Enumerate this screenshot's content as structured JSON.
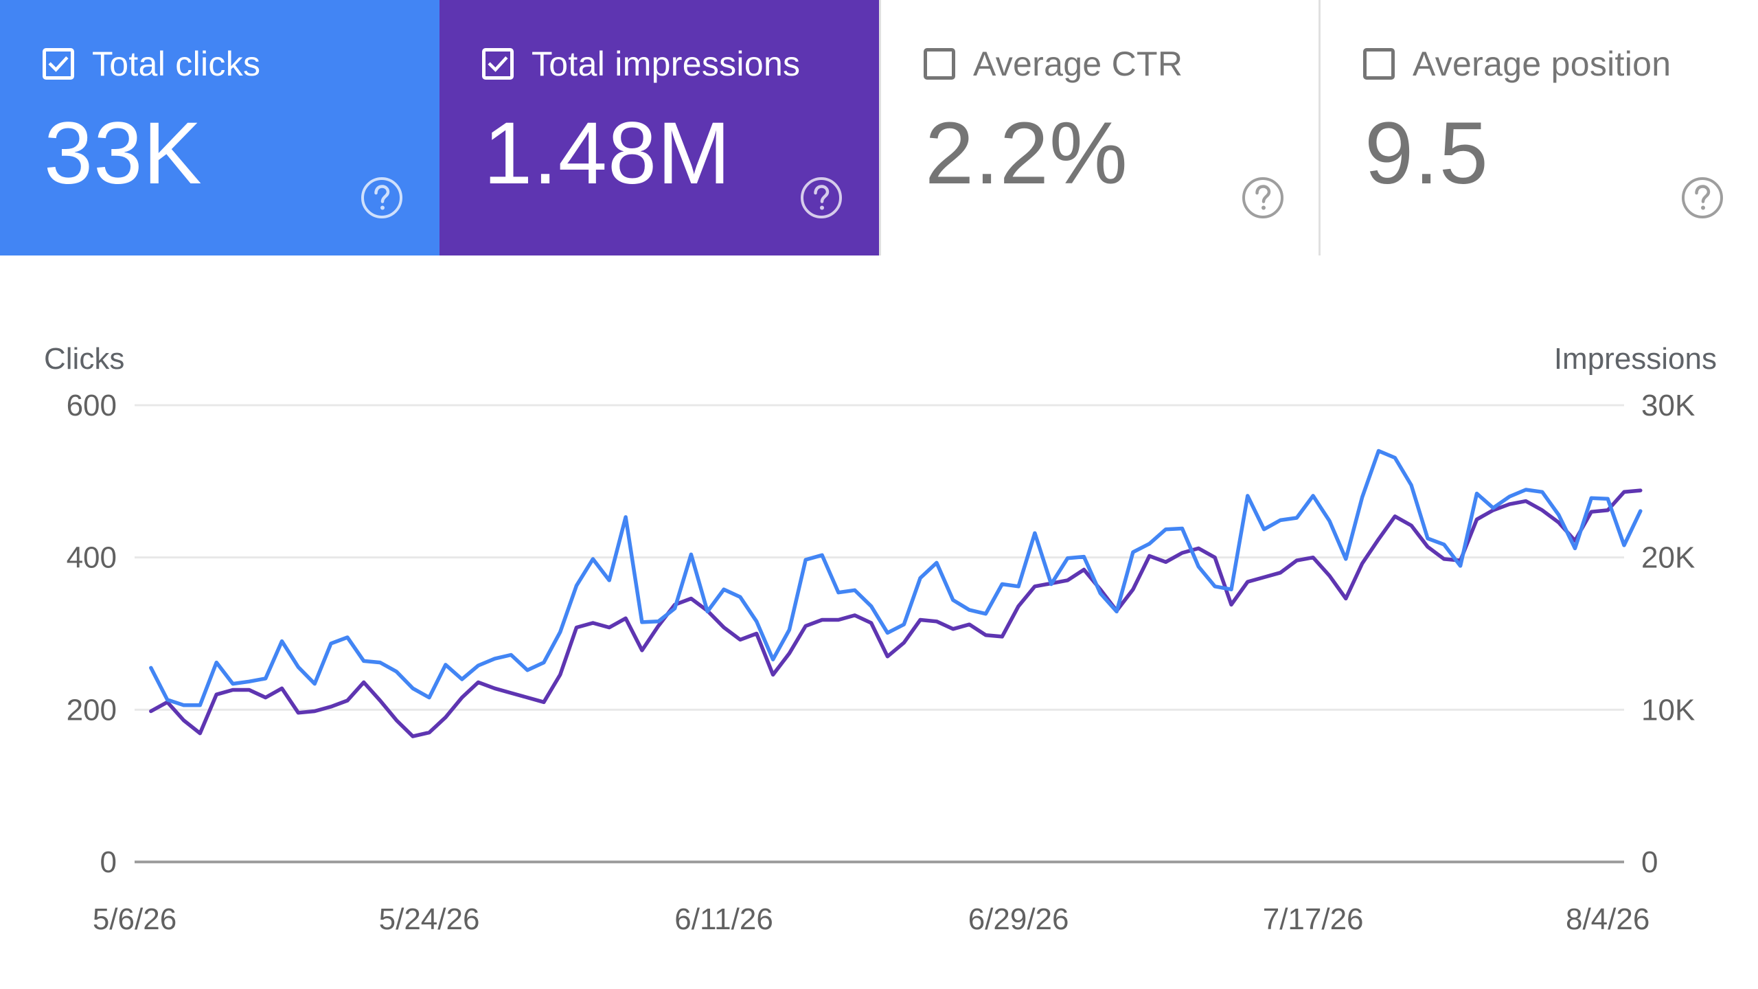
{
  "colors": {
    "clicks": "#4285f4",
    "impressions": "#5e35b1",
    "inactive_text": "#757575",
    "grid": "#e8e8e8",
    "baseline": "#9e9e9e"
  },
  "cards": [
    {
      "label": "Total clicks",
      "value": "33K",
      "checked": true,
      "color": "#4285f4",
      "icon": "help-circle-icon"
    },
    {
      "label": "Total impressions",
      "value": "1.48M",
      "checked": true,
      "color": "#5e35b1",
      "icon": "help-circle-icon"
    },
    {
      "label": "Average CTR",
      "value": "2.2%",
      "checked": false,
      "color": "#ffffff",
      "icon": "help-circle-icon"
    },
    {
      "label": "Average position",
      "value": "9.5",
      "checked": false,
      "color": "#ffffff",
      "icon": "help-circle-icon"
    }
  ],
  "chart_data": {
    "type": "line",
    "ylabel_left": "Clicks",
    "ylabel_right": "Impressions",
    "yticks_left": [
      "0",
      "200",
      "400",
      "600"
    ],
    "yticks_right": [
      "0",
      "10K",
      "20K",
      "30K"
    ],
    "ylim_left": [
      0,
      600
    ],
    "ylim_right": [
      0,
      30000
    ],
    "x_start": "5/6/26",
    "x_end": "8/5/26",
    "xticks": [
      "5/6/26",
      "5/24/26",
      "6/11/26",
      "6/29/26",
      "7/17/26",
      "8/4/26"
    ],
    "grid": true,
    "series": [
      {
        "name": "Clicks",
        "axis": "left",
        "color": "#4285f4",
        "values": [
          255,
          213,
          206,
          206,
          262,
          234,
          237,
          241,
          290,
          256,
          234,
          287,
          295,
          264,
          262,
          250,
          228,
          216,
          259,
          240,
          258,
          267,
          272,
          252,
          262,
          302,
          363,
          398,
          370,
          453,
          315,
          316,
          333,
          404,
          329,
          358,
          348,
          316,
          266,
          305,
          397,
          403,
          354,
          357,
          336,
          301,
          312,
          373,
          393,
          344,
          331,
          326,
          365,
          362,
          432,
          365,
          399,
          401,
          353,
          329,
          407,
          418,
          437,
          438,
          388,
          362,
          358,
          481,
          437,
          449,
          452,
          481,
          448,
          398,
          479,
          540,
          531,
          495,
          425,
          417,
          389,
          484,
          465,
          480,
          489,
          486,
          456,
          412,
          478,
          477,
          416,
          461
        ]
      },
      {
        "name": "Impressions",
        "axis": "right",
        "color": "#5e35b1",
        "values": [
          9900,
          10500,
          9300,
          8450,
          11000,
          11300,
          11300,
          10800,
          11400,
          9800,
          9900,
          10200,
          10600,
          11800,
          10600,
          9300,
          8250,
          8500,
          9500,
          10800,
          11800,
          11400,
          11100,
          10800,
          10500,
          12300,
          15400,
          15700,
          15400,
          16000,
          13900,
          15500,
          16900,
          17300,
          16500,
          15400,
          14600,
          15000,
          12300,
          13700,
          15500,
          15900,
          15900,
          16200,
          15700,
          13500,
          14400,
          15900,
          15800,
          15300,
          15600,
          14900,
          14800,
          16800,
          18100,
          18300,
          18500,
          19200,
          17900,
          16500,
          17900,
          20100,
          19700,
          20300,
          20600,
          20000,
          16900,
          18400,
          18700,
          19000,
          19800,
          20000,
          18800,
          17300,
          19600,
          21200,
          22700,
          22100,
          20700,
          19900,
          19800,
          22500,
          23100,
          23500,
          23700,
          23100,
          22300,
          21100,
          23000,
          23100,
          24300,
          24400
        ]
      }
    ]
  }
}
